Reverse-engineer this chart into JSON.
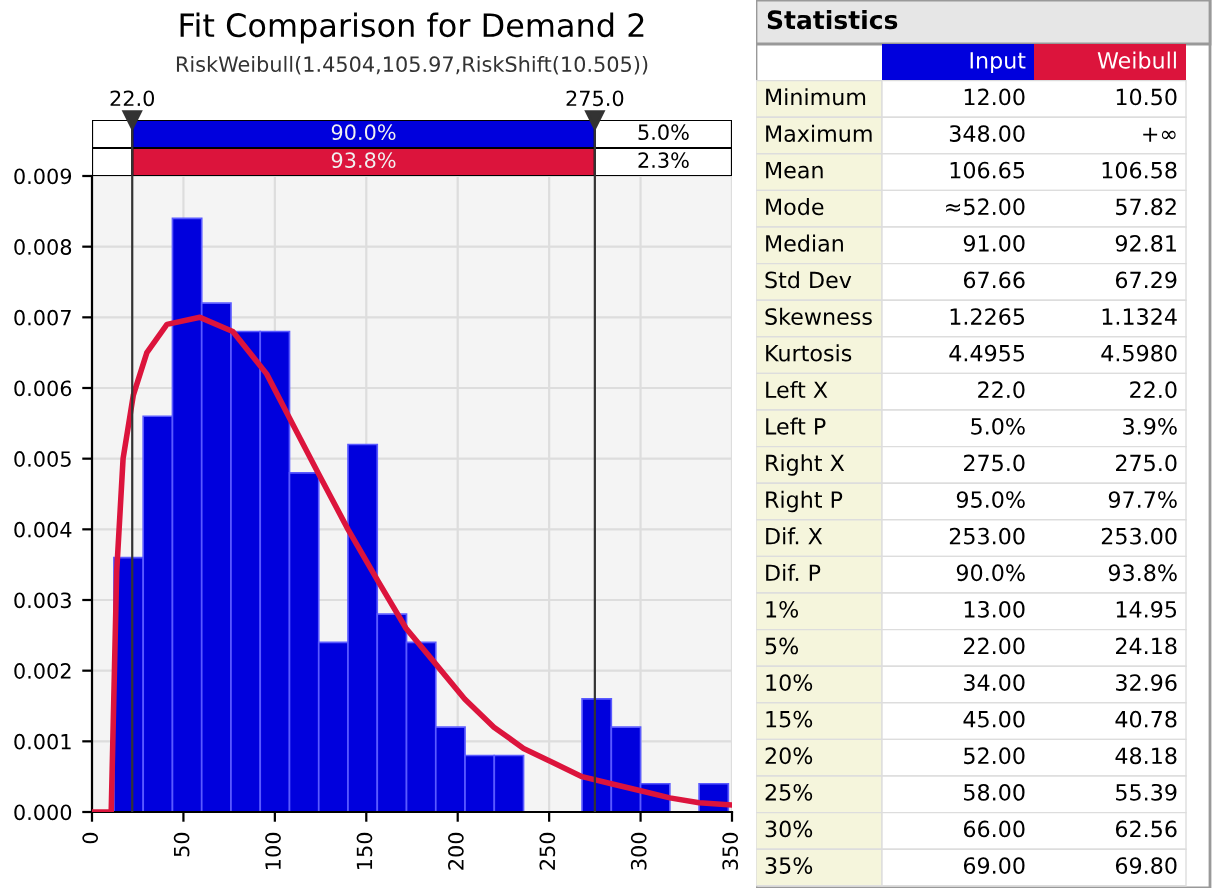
{
  "chart_data": [
    {
      "type": "histogram",
      "title": "Fit Comparison for Demand 2",
      "subtitle": "RiskWeibull(1.4504,105.97,RiskShift(10.505))",
      "bins": [
        12,
        28,
        44,
        60,
        76,
        92,
        108,
        124,
        140,
        156,
        172,
        188,
        204,
        220,
        236,
        252,
        268,
        284,
        300,
        316,
        332,
        348
      ],
      "values": [
        0.0036,
        0.0056,
        0.0084,
        0.0072,
        0.0068,
        0.0068,
        0.0048,
        0.0024,
        0.0052,
        0.0028,
        0.0024,
        0.0012,
        0.0008,
        0.0008,
        0,
        0,
        0.0016,
        0.0012,
        0.0004,
        0,
        0.0004
      ],
      "color": "#0000dd",
      "series": [
        {
          "type": "line",
          "color": "#dc143c",
          "x": [
            0,
            10.5,
            13.5,
            17,
            22.6,
            30,
            41,
            59,
            77,
            95.5,
            107.5,
            123.6,
            140,
            155.7,
            171.7,
            187.8,
            203.8,
            219.8,
            236,
            252,
            268,
            284,
            300,
            316,
            332,
            350
          ],
          "values": [
            0,
            0,
            0.0034,
            0.005,
            0.0059,
            0.0065,
            0.0069,
            0.007,
            0.0068,
            0.0062,
            0.0056,
            0.0048,
            0.004,
            0.0033,
            0.0026,
            0.0021,
            0.0016,
            0.0012,
            0.0009,
            0.0007,
            0.0005,
            0.0004,
            0.0003,
            0.0002,
            0.00013,
            0.0001
          ]
        }
      ],
      "xlim": [
        0,
        350
      ],
      "xticks": [
        0,
        50,
        100,
        150,
        200,
        250,
        300,
        350
      ],
      "ylim": [
        0,
        0.009
      ],
      "yticks": [
        {
          "value": 0,
          "label": "0.000"
        },
        {
          "value": 0.001,
          "label": "0.001"
        },
        {
          "value": 0.002,
          "label": "0.002"
        },
        {
          "value": 0.003,
          "label": "0.003"
        },
        {
          "value": 0.004,
          "label": "0.004"
        },
        {
          "value": 0.005,
          "label": "0.005"
        },
        {
          "value": 0.006,
          "label": "0.006"
        },
        {
          "value": 0.007,
          "label": "0.007"
        },
        {
          "value": 0.008,
          "label": "0.008"
        },
        {
          "value": 0.009,
          "label": "0.009"
        }
      ],
      "grid": true,
      "ref_lines": [
        {
          "axis": "x",
          "value": 22,
          "label": "22.0"
        },
        {
          "axis": "x",
          "value": 275,
          "label": "275.0"
        }
      ],
      "annotations": [
        "90.0%",
        "5.0%",
        "93.8%",
        "2.3%"
      ]
    },
    {
      "type": "other",
      "title": "Statistics",
      "annotations": [
        "Input",
        "Weibull",
        "Minimum",
        "12.00",
        "10.50",
        "Maximum",
        "348.00",
        "+∞",
        "Mean",
        "106.65",
        "106.58",
        "Mode",
        "≈52.00",
        "57.82",
        "Median",
        "91.00",
        "92.81",
        "Std Dev",
        "67.66",
        "67.29",
        "Skewness",
        "1.2265",
        "1.1324",
        "Kurtosis",
        "4.4955",
        "4.5980",
        "Left X",
        "22.0",
        "22.0",
        "Left P",
        "5.0%",
        "3.9%",
        "Right X",
        "275.0",
        "275.0",
        "Right P",
        "95.0%",
        "97.7%",
        "Dif. X",
        "253.00",
        "253.00",
        "Dif. P",
        "90.0%",
        "93.8%",
        "1%",
        "13.00",
        "14.95",
        "5%",
        "22.00",
        "24.18",
        "10%",
        "34.00",
        "32.96",
        "15%",
        "45.00",
        "40.78",
        "20%",
        "52.00",
        "48.18",
        "25%",
        "58.00",
        "55.39",
        "30%",
        "66.00",
        "62.56",
        "35%",
        "69.00",
        "69.80"
      ]
    }
  ]
}
